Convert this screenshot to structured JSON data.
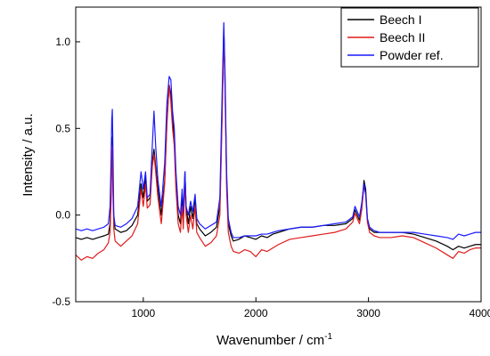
{
  "chart_data": {
    "type": "line",
    "title": "",
    "xlabel": "Wavenumber",
    "xlabel_unit_prefix": "cm",
    "xlabel_unit_exponent": "-1",
    "ylabel": "Intensity",
    "ylabel_unit": "a.u.",
    "xlim": [
      400,
      4000
    ],
    "ylim": [
      -0.5,
      1.2
    ],
    "x_ticks": [
      1000,
      2000,
      3000,
      4000
    ],
    "y_ticks": [
      -0.5,
      0.0,
      0.5,
      1.0
    ],
    "x_tick_labels": [
      "1000",
      "2000",
      "3000",
      "4000"
    ],
    "y_tick_labels": [
      "-0.5",
      "0.0",
      "0.5",
      "1.0"
    ],
    "grid": false,
    "legend_placement": "top-right",
    "series": [
      {
        "name": "Beech I",
        "color": "#000000",
        "points": [
          [
            400,
            -0.13
          ],
          [
            450,
            -0.14
          ],
          [
            500,
            -0.13
          ],
          [
            550,
            -0.14
          ],
          [
            600,
            -0.13
          ],
          [
            650,
            -0.12
          ],
          [
            690,
            -0.11
          ],
          [
            705,
            -0.05
          ],
          [
            715,
            0.15
          ],
          [
            720,
            0.35
          ],
          [
            725,
            0.45
          ],
          [
            730,
            0.2
          ],
          [
            738,
            -0.03
          ],
          [
            750,
            -0.08
          ],
          [
            800,
            -0.1
          ],
          [
            850,
            -0.09
          ],
          [
            900,
            -0.06
          ],
          [
            950,
            0.0
          ],
          [
            980,
            0.18
          ],
          [
            1000,
            0.1
          ],
          [
            1020,
            0.22
          ],
          [
            1035,
            0.08
          ],
          [
            1060,
            0.1
          ],
          [
            1080,
            0.3
          ],
          [
            1095,
            0.38
          ],
          [
            1110,
            0.28
          ],
          [
            1130,
            0.15
          ],
          [
            1160,
            0.0
          ],
          [
            1190,
            0.2
          ],
          [
            1210,
            0.55
          ],
          [
            1230,
            0.75
          ],
          [
            1245,
            0.7
          ],
          [
            1260,
            0.55
          ],
          [
            1275,
            0.45
          ],
          [
            1290,
            0.2
          ],
          [
            1310,
            0.0
          ],
          [
            1330,
            -0.05
          ],
          [
            1345,
            0.1
          ],
          [
            1355,
            -0.02
          ],
          [
            1370,
            0.25
          ],
          [
            1380,
            0.05
          ],
          [
            1400,
            -0.05
          ],
          [
            1420,
            0.05
          ],
          [
            1440,
            -0.02
          ],
          [
            1460,
            0.1
          ],
          [
            1475,
            -0.05
          ],
          [
            1500,
            -0.08
          ],
          [
            1550,
            -0.12
          ],
          [
            1600,
            -0.1
          ],
          [
            1650,
            -0.07
          ],
          [
            1680,
            0.05
          ],
          [
            1700,
            0.6
          ],
          [
            1715,
            1.08
          ],
          [
            1725,
            0.8
          ],
          [
            1740,
            0.2
          ],
          [
            1755,
            -0.05
          ],
          [
            1780,
            -0.12
          ],
          [
            1800,
            -0.15
          ],
          [
            1850,
            -0.14
          ],
          [
            1900,
            -0.12
          ],
          [
            1950,
            -0.13
          ],
          [
            2000,
            -0.14
          ],
          [
            2050,
            -0.12
          ],
          [
            2100,
            -0.13
          ],
          [
            2150,
            -0.11
          ],
          [
            2200,
            -0.1
          ],
          [
            2300,
            -0.08
          ],
          [
            2400,
            -0.07
          ],
          [
            2500,
            -0.07
          ],
          [
            2600,
            -0.06
          ],
          [
            2700,
            -0.06
          ],
          [
            2800,
            -0.05
          ],
          [
            2860,
            -0.02
          ],
          [
            2880,
            0.03
          ],
          [
            2900,
            0.0
          ],
          [
            2920,
            -0.03
          ],
          [
            2940,
            0.05
          ],
          [
            2960,
            0.2
          ],
          [
            2975,
            0.15
          ],
          [
            2990,
            -0.02
          ],
          [
            3010,
            -0.08
          ],
          [
            3050,
            -0.1
          ],
          [
            3100,
            -0.1
          ],
          [
            3200,
            -0.1
          ],
          [
            3300,
            -0.1
          ],
          [
            3400,
            -0.11
          ],
          [
            3500,
            -0.13
          ],
          [
            3600,
            -0.15
          ],
          [
            3700,
            -0.18
          ],
          [
            3750,
            -0.2
          ],
          [
            3800,
            -0.18
          ],
          [
            3850,
            -0.19
          ],
          [
            3900,
            -0.18
          ],
          [
            3950,
            -0.17
          ],
          [
            4000,
            -0.17
          ]
        ]
      },
      {
        "name": "Beech II",
        "color": "#e01b1b",
        "points": [
          [
            400,
            -0.23
          ],
          [
            450,
            -0.26
          ],
          [
            500,
            -0.24
          ],
          [
            550,
            -0.25
          ],
          [
            600,
            -0.22
          ],
          [
            650,
            -0.2
          ],
          [
            690,
            -0.16
          ],
          [
            705,
            -0.1
          ],
          [
            715,
            0.1
          ],
          [
            720,
            0.3
          ],
          [
            725,
            0.4
          ],
          [
            730,
            0.15
          ],
          [
            738,
            -0.08
          ],
          [
            750,
            -0.15
          ],
          [
            800,
            -0.18
          ],
          [
            850,
            -0.15
          ],
          [
            900,
            -0.12
          ],
          [
            950,
            -0.05
          ],
          [
            980,
            0.15
          ],
          [
            1000,
            0.05
          ],
          [
            1020,
            0.18
          ],
          [
            1035,
            0.04
          ],
          [
            1060,
            0.06
          ],
          [
            1080,
            0.28
          ],
          [
            1095,
            0.35
          ],
          [
            1110,
            0.25
          ],
          [
            1130,
            0.1
          ],
          [
            1160,
            -0.05
          ],
          [
            1190,
            0.18
          ],
          [
            1210,
            0.52
          ],
          [
            1230,
            0.75
          ],
          [
            1245,
            0.65
          ],
          [
            1260,
            0.5
          ],
          [
            1275,
            0.4
          ],
          [
            1290,
            0.15
          ],
          [
            1310,
            -0.05
          ],
          [
            1330,
            -0.1
          ],
          [
            1345,
            0.05
          ],
          [
            1355,
            -0.08
          ],
          [
            1370,
            0.2
          ],
          [
            1380,
            0.0
          ],
          [
            1400,
            -0.1
          ],
          [
            1420,
            0.0
          ],
          [
            1440,
            -0.08
          ],
          [
            1460,
            0.05
          ],
          [
            1475,
            -0.1
          ],
          [
            1500,
            -0.13
          ],
          [
            1550,
            -0.18
          ],
          [
            1600,
            -0.16
          ],
          [
            1650,
            -0.12
          ],
          [
            1680,
            0.0
          ],
          [
            1700,
            0.55
          ],
          [
            1715,
            1.05
          ],
          [
            1725,
            0.75
          ],
          [
            1740,
            0.15
          ],
          [
            1755,
            -0.1
          ],
          [
            1780,
            -0.18
          ],
          [
            1800,
            -0.21
          ],
          [
            1850,
            -0.22
          ],
          [
            1900,
            -0.2
          ],
          [
            1950,
            -0.21
          ],
          [
            2000,
            -0.24
          ],
          [
            2050,
            -0.2
          ],
          [
            2100,
            -0.21
          ],
          [
            2150,
            -0.19
          ],
          [
            2200,
            -0.17
          ],
          [
            2300,
            -0.14
          ],
          [
            2400,
            -0.13
          ],
          [
            2500,
            -0.12
          ],
          [
            2600,
            -0.11
          ],
          [
            2700,
            -0.1
          ],
          [
            2800,
            -0.08
          ],
          [
            2860,
            -0.04
          ],
          [
            2880,
            0.01
          ],
          [
            2900,
            -0.02
          ],
          [
            2920,
            -0.05
          ],
          [
            2940,
            0.03
          ],
          [
            2960,
            0.17
          ],
          [
            2975,
            0.12
          ],
          [
            2990,
            -0.04
          ],
          [
            3010,
            -0.1
          ],
          [
            3050,
            -0.12
          ],
          [
            3100,
            -0.13
          ],
          [
            3200,
            -0.13
          ],
          [
            3300,
            -0.12
          ],
          [
            3400,
            -0.13
          ],
          [
            3500,
            -0.16
          ],
          [
            3600,
            -0.19
          ],
          [
            3700,
            -0.23
          ],
          [
            3750,
            -0.25
          ],
          [
            3800,
            -0.21
          ],
          [
            3850,
            -0.22
          ],
          [
            3900,
            -0.2
          ],
          [
            3950,
            -0.19
          ],
          [
            4000,
            -0.19
          ]
        ]
      },
      {
        "name": "Powder ref.",
        "color": "#1a1aff",
        "points": [
          [
            400,
            -0.08
          ],
          [
            450,
            -0.09
          ],
          [
            500,
            -0.08
          ],
          [
            550,
            -0.09
          ],
          [
            600,
            -0.08
          ],
          [
            650,
            -0.07
          ],
          [
            690,
            -0.05
          ],
          [
            705,
            0.05
          ],
          [
            715,
            0.35
          ],
          [
            720,
            0.55
          ],
          [
            725,
            0.61
          ],
          [
            730,
            0.4
          ],
          [
            738,
            0.0
          ],
          [
            750,
            -0.06
          ],
          [
            800,
            -0.07
          ],
          [
            850,
            -0.05
          ],
          [
            900,
            -0.02
          ],
          [
            950,
            0.05
          ],
          [
            980,
            0.25
          ],
          [
            1000,
            0.15
          ],
          [
            1020,
            0.25
          ],
          [
            1035,
            0.1
          ],
          [
            1060,
            0.12
          ],
          [
            1080,
            0.4
          ],
          [
            1095,
            0.6
          ],
          [
            1110,
            0.4
          ],
          [
            1130,
            0.2
          ],
          [
            1160,
            0.05
          ],
          [
            1190,
            0.3
          ],
          [
            1210,
            0.65
          ],
          [
            1230,
            0.8
          ],
          [
            1245,
            0.78
          ],
          [
            1260,
            0.6
          ],
          [
            1275,
            0.5
          ],
          [
            1290,
            0.25
          ],
          [
            1310,
            0.05
          ],
          [
            1330,
            0.0
          ],
          [
            1345,
            0.15
          ],
          [
            1355,
            0.02
          ],
          [
            1370,
            0.25
          ],
          [
            1380,
            0.05
          ],
          [
            1400,
            0.0
          ],
          [
            1420,
            0.08
          ],
          [
            1440,
            0.02
          ],
          [
            1460,
            0.12
          ],
          [
            1475,
            -0.02
          ],
          [
            1500,
            -0.05
          ],
          [
            1550,
            -0.08
          ],
          [
            1600,
            -0.06
          ],
          [
            1650,
            -0.04
          ],
          [
            1680,
            0.1
          ],
          [
            1700,
            0.7
          ],
          [
            1715,
            1.11
          ],
          [
            1725,
            0.85
          ],
          [
            1740,
            0.25
          ],
          [
            1755,
            -0.02
          ],
          [
            1780,
            -0.1
          ],
          [
            1800,
            -0.13
          ],
          [
            1850,
            -0.13
          ],
          [
            1900,
            -0.12
          ],
          [
            1950,
            -0.12
          ],
          [
            2000,
            -0.12
          ],
          [
            2050,
            -0.11
          ],
          [
            2100,
            -0.11
          ],
          [
            2150,
            -0.1
          ],
          [
            2200,
            -0.09
          ],
          [
            2300,
            -0.08
          ],
          [
            2400,
            -0.07
          ],
          [
            2500,
            -0.07
          ],
          [
            2600,
            -0.06
          ],
          [
            2700,
            -0.05
          ],
          [
            2800,
            -0.04
          ],
          [
            2860,
            -0.01
          ],
          [
            2880,
            0.05
          ],
          [
            2900,
            0.02
          ],
          [
            2920,
            -0.01
          ],
          [
            2940,
            0.07
          ],
          [
            2960,
            0.18
          ],
          [
            2975,
            0.12
          ],
          [
            2990,
            -0.02
          ],
          [
            3010,
            -0.07
          ],
          [
            3050,
            -0.09
          ],
          [
            3100,
            -0.1
          ],
          [
            3200,
            -0.1
          ],
          [
            3300,
            -0.1
          ],
          [
            3400,
            -0.1
          ],
          [
            3500,
            -0.11
          ],
          [
            3600,
            -0.12
          ],
          [
            3700,
            -0.13
          ],
          [
            3750,
            -0.14
          ],
          [
            3800,
            -0.11
          ],
          [
            3850,
            -0.12
          ],
          [
            3900,
            -0.11
          ],
          [
            3950,
            -0.1
          ],
          [
            4000,
            -0.1
          ]
        ]
      }
    ]
  }
}
